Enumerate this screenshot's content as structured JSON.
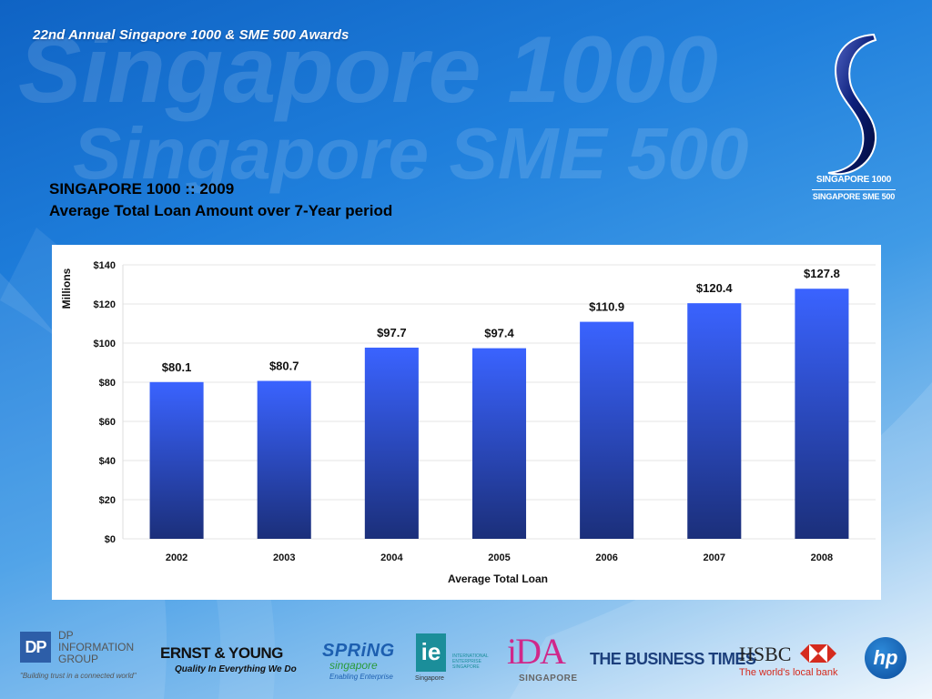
{
  "header": {
    "title": "22nd Annual Singapore 1000 & SME 500 Awards"
  },
  "watermark": {
    "line1": "Singapore 1000",
    "line2": "Singapore SME 500"
  },
  "emblem": {
    "line1": "SINGAPORE 1000",
    "line2": "SINGAPORE SME 500"
  },
  "slide": {
    "title_line1": "SINGAPORE 1000 :: 2009",
    "title_line2": "Average Total Loan Amount over 7-Year period"
  },
  "chart_data": {
    "type": "bar",
    "categories": [
      "2002",
      "2003",
      "2004",
      "2005",
      "2006",
      "2007",
      "2008"
    ],
    "values": [
      80.1,
      80.7,
      97.7,
      97.4,
      110.9,
      120.4,
      127.8
    ],
    "data_labels": [
      "$80.1",
      "$80.7",
      "$97.7",
      "$97.4",
      "$110.9",
      "$120.4",
      "$127.8"
    ],
    "xlabel": "Average Total Loan",
    "ylabel": "Millions",
    "ylim": [
      0,
      140
    ],
    "yticks": [
      0,
      20,
      40,
      60,
      80,
      100,
      120,
      140
    ],
    "ytick_labels": [
      "$0",
      "$20",
      "$40",
      "$60",
      "$80",
      "$100",
      "$120",
      "$140"
    ],
    "grid": true,
    "legend": "none",
    "colors": {
      "bar_top": "#3a63ff",
      "bar_bottom": "#1b2f7a"
    }
  },
  "logos": {
    "dp": {
      "mark": "DP",
      "name": "DP INFORMATION GROUP",
      "tagline": "\"Building trust in a connected world\""
    },
    "ey": {
      "name": "ERNST & YOUNG",
      "tagline": "Quality In Everything We Do"
    },
    "spring": {
      "name": "SPRiNG",
      "sub": "singapore",
      "tagline": "Enabling Enterprise"
    },
    "ie": {
      "mark": "ie",
      "text": "INTERNATIONAL ENTERPRISE SINGAPORE",
      "sub": "Singapore"
    },
    "ida": {
      "name": "iDA",
      "sub": "SINGAPORE"
    },
    "bt": {
      "name": "THE BUSINESS TIMES"
    },
    "hsbc": {
      "name": "HSBC",
      "tagline": "The world's local bank"
    },
    "hp": {
      "mark": "hp"
    }
  }
}
